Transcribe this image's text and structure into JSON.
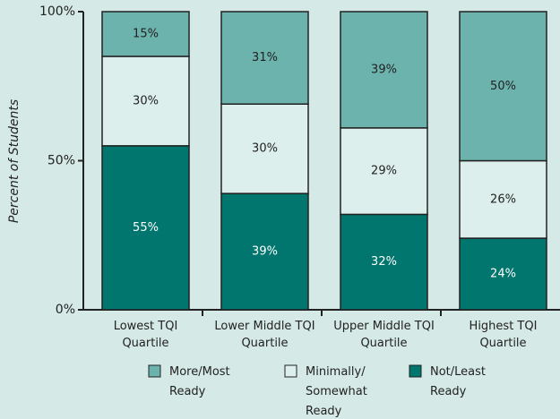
{
  "chart_data": {
    "type": "stacked_bar",
    "y_label": "Percent of Students",
    "categories": [
      "Lowest TQI\nQuartile",
      "Lower Middle TQI\nQuartile",
      "Upper Middle TQI\nQuartile",
      "Highest TQI\nQuartile"
    ],
    "series": [
      {
        "name": "Not/Least\nReady",
        "color": "#00766e",
        "text_color": "#ffffff",
        "values": [
          55,
          39,
          32,
          24
        ],
        "value_labels": [
          "55%",
          "39%",
          "32%",
          "24%"
        ]
      },
      {
        "name": "Minimally/\nSomewhat\nReady",
        "color": "#dcefec",
        "text_color": "#222222",
        "values": [
          30,
          30,
          29,
          26
        ],
        "value_labels": [
          "30%",
          "30%",
          "29%",
          "26%"
        ]
      },
      {
        "name": "More/Most\nReady",
        "color": "#6cb3ad",
        "text_color": "#222222",
        "values": [
          15,
          31,
          39,
          50
        ],
        "value_labels": [
          "15%",
          "31%",
          "39%",
          "50%"
        ]
      }
    ],
    "ylim": [
      0,
      100
    ],
    "yticks": [
      {
        "value": 0,
        "label": "0%"
      },
      {
        "value": 50,
        "label": "50%"
      },
      {
        "value": 100,
        "label": "100%"
      }
    ]
  }
}
